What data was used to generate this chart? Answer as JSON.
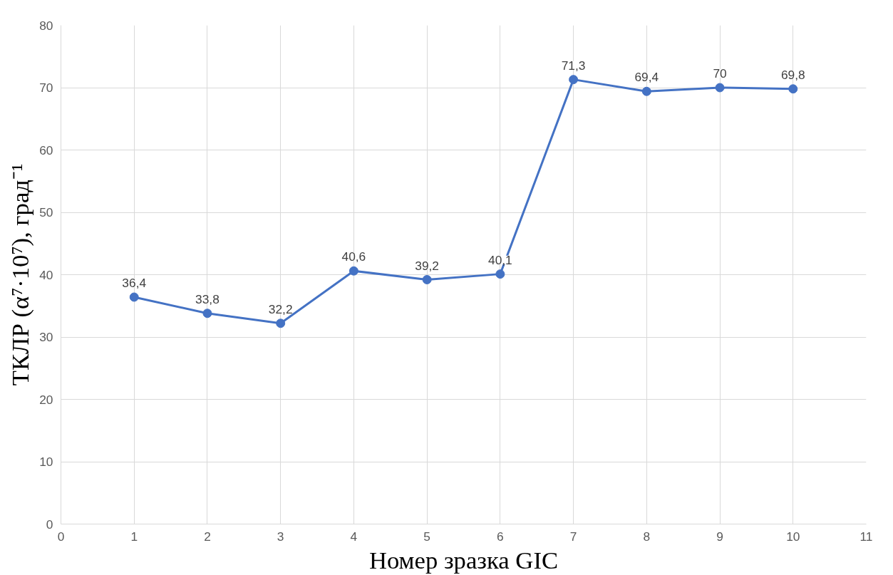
{
  "chart_data": {
    "type": "line",
    "xlabel": "Номер зразка GIC",
    "ylabel": "ТКЛР (α⁷·10⁷), град⁻¹",
    "x": [
      1,
      2,
      3,
      4,
      5,
      6,
      7,
      8,
      9,
      10
    ],
    "series": [
      {
        "color": "#4472c4",
        "values": [
          36.4,
          33.8,
          32.2,
          40.6,
          39.2,
          40.1,
          71.3,
          69.4,
          70,
          69.8
        ]
      }
    ],
    "value_labels": [
      "36,4",
      "33,8",
      "32,2",
      "40,6",
      "39,2",
      "40,1",
      "71,3",
      "69,4",
      "70",
      "69,8"
    ],
    "xlim": [
      0,
      11
    ],
    "xticks": [
      0,
      1,
      2,
      3,
      4,
      5,
      6,
      7,
      8,
      9,
      10,
      11
    ],
    "ylim": [
      0,
      80
    ],
    "yticks": [
      0,
      10,
      20,
      30,
      40,
      50,
      60,
      70,
      80
    ],
    "grid": true,
    "marker": "circle",
    "line_style": "solid"
  }
}
